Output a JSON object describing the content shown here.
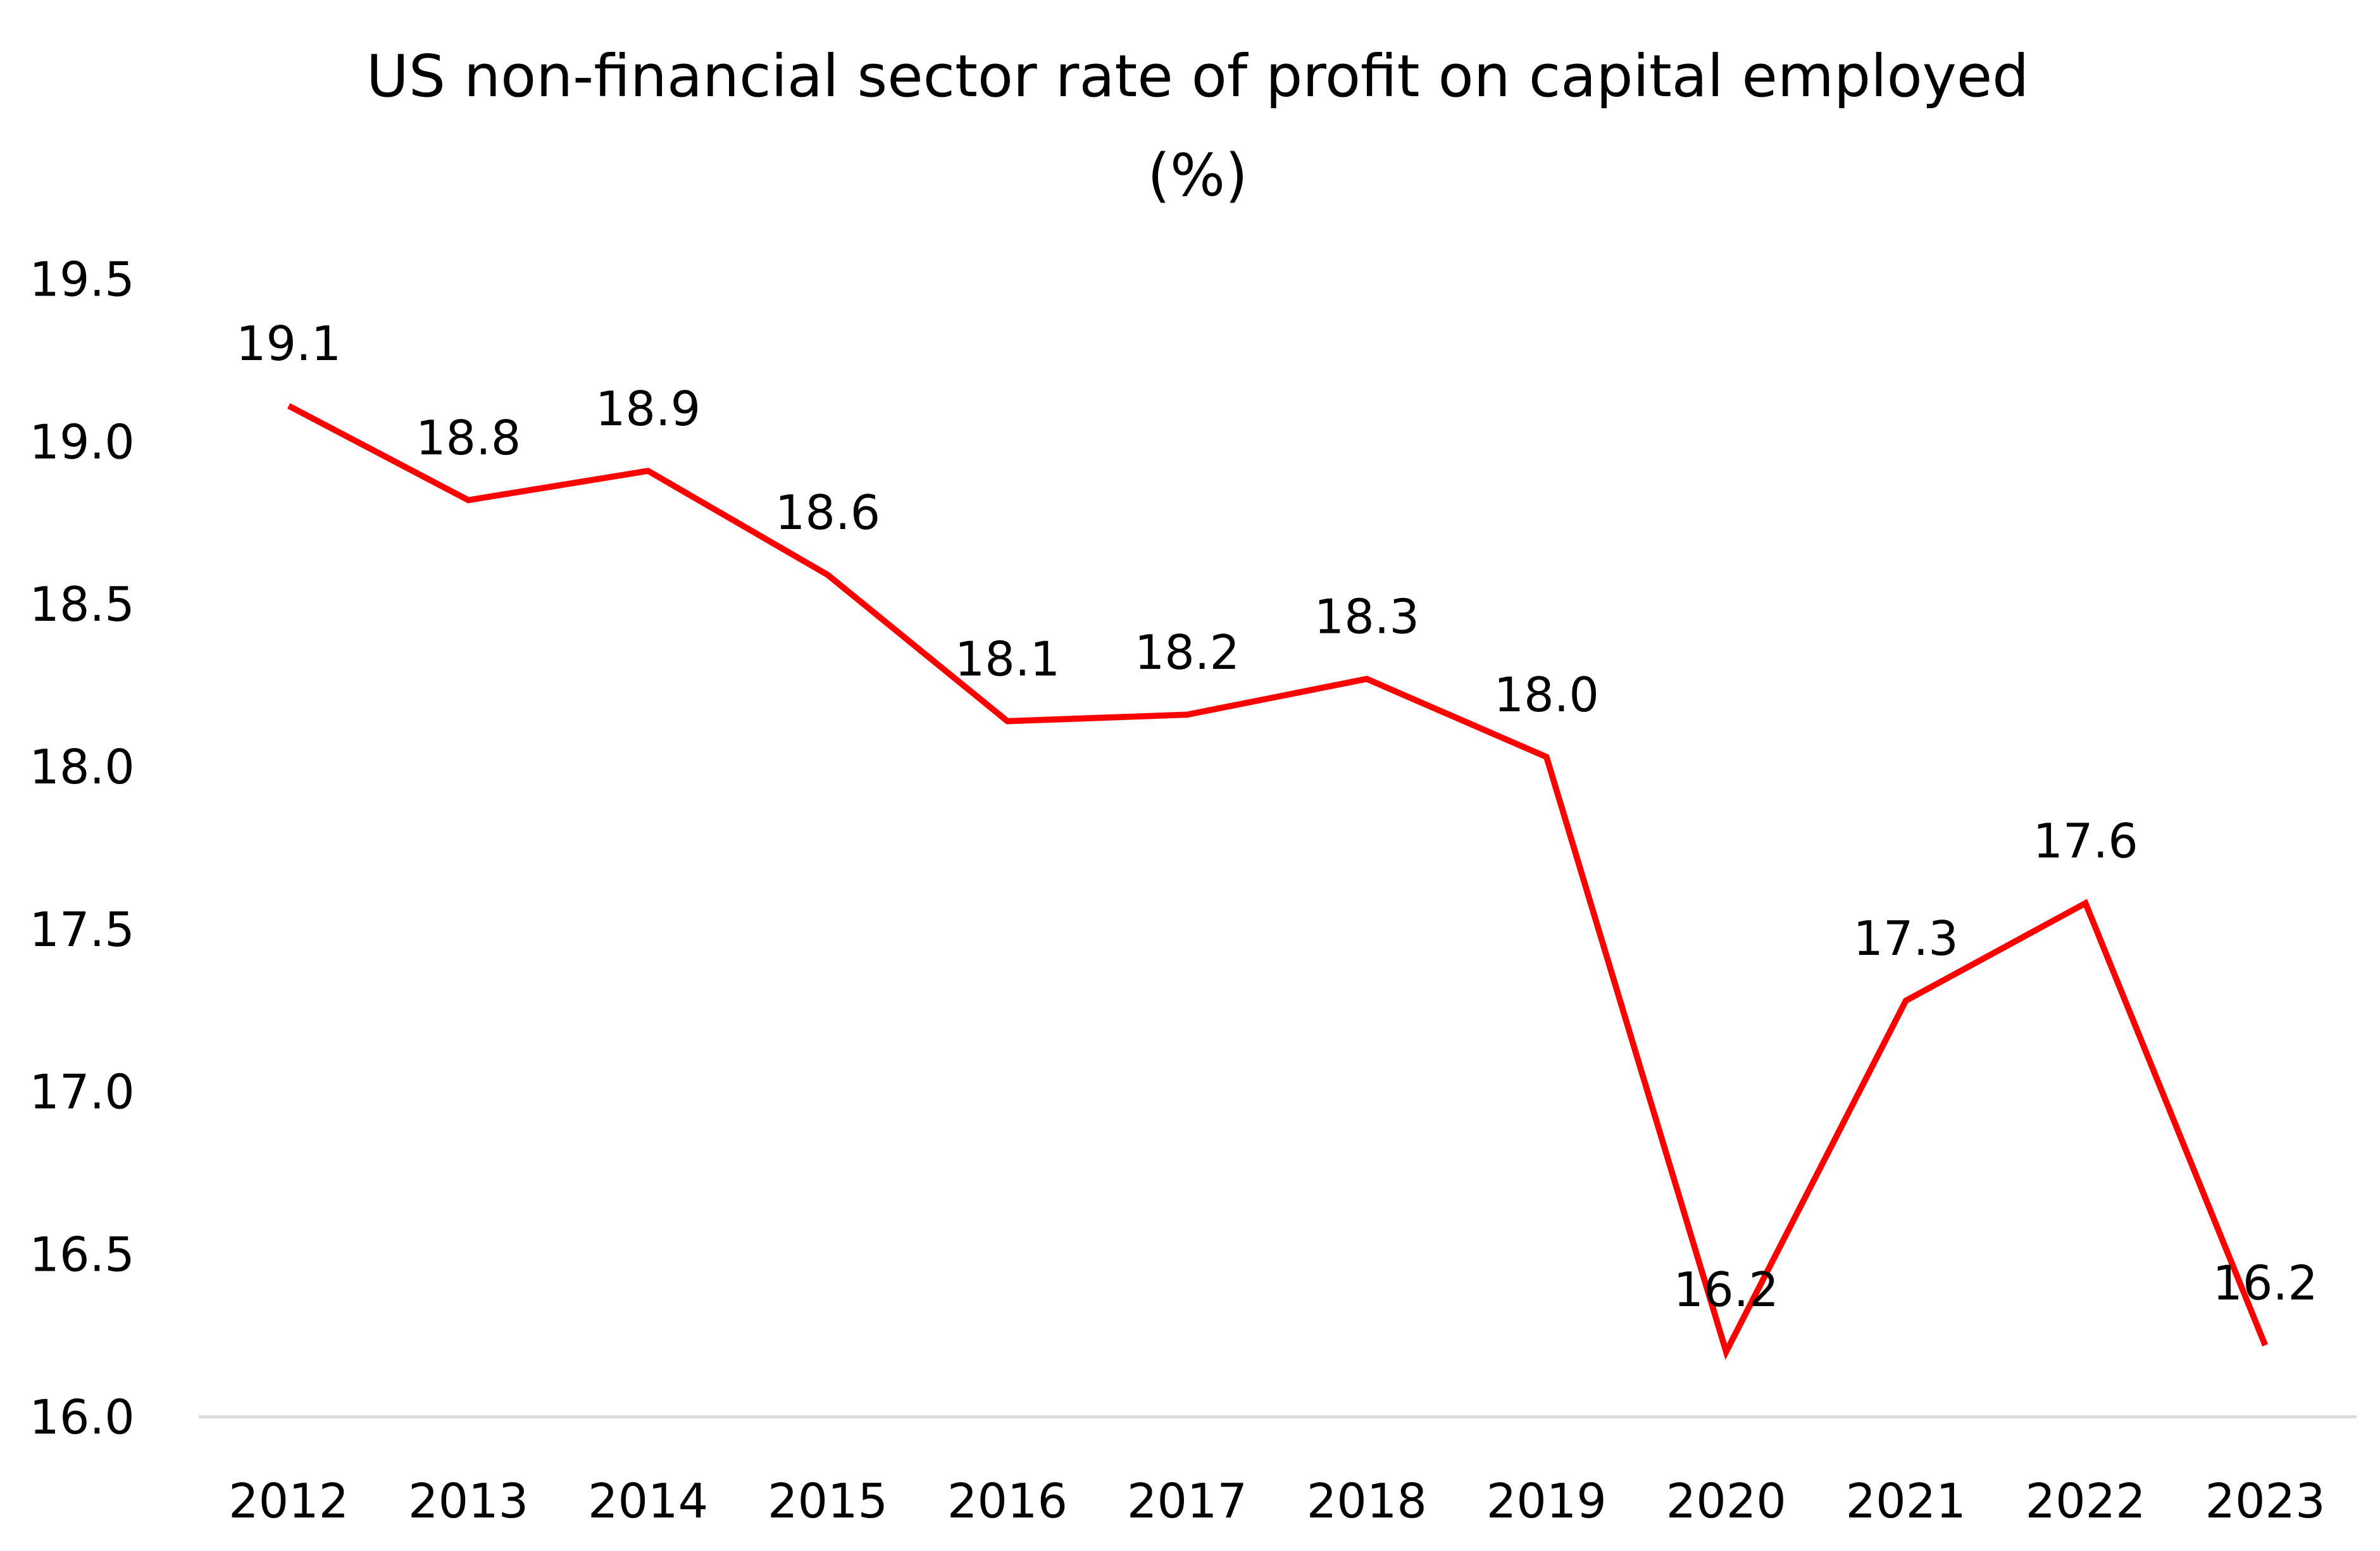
{
  "chart_data": {
    "type": "line",
    "title": "US non-financial sector rate of profit on capital employed",
    "subtitle": "(%)",
    "xlabel": "",
    "ylabel": "",
    "categories": [
      "2012",
      "2013",
      "2014",
      "2015",
      "2016",
      "2017",
      "2018",
      "2019",
      "2020",
      "2021",
      "2022",
      "2023"
    ],
    "series": [
      {
        "values": [
          19.11,
          18.82,
          18.91,
          18.59,
          18.14,
          18.16,
          18.27,
          18.03,
          16.2,
          17.28,
          17.58,
          16.22
        ],
        "labels": [
          "19.1",
          "18.8",
          "18.9",
          "18.6",
          "18.1",
          "18.2",
          "18.3",
          "18.0",
          "16.2",
          "17.3",
          "17.6",
          "16.2"
        ],
        "color": "#ff0000"
      }
    ],
    "ylim": [
      16.0,
      19.5
    ],
    "yticks": [
      "16.0",
      "16.5",
      "17.0",
      "17.5",
      "18.0",
      "18.5",
      "19.0",
      "19.5"
    ],
    "grid": false,
    "legend": "none"
  }
}
